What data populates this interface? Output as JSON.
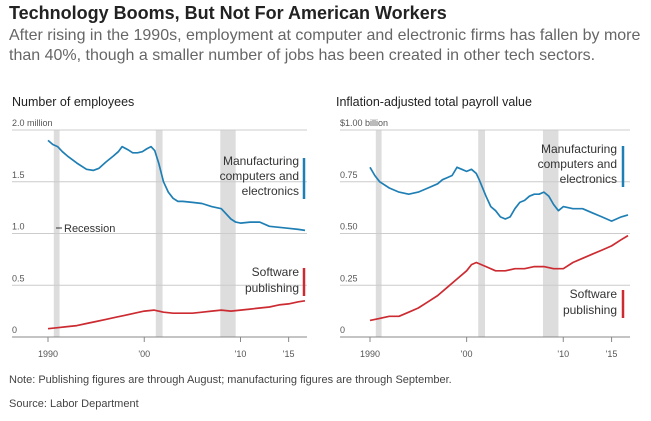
{
  "headline": "Technology Booms, But Not For American Workers",
  "dek": "After rising in the 1990s, employment at computer and electronic firms has fallen by more than 40%, though a smaller number of jobs has been created in other tech sectors.",
  "note": "Note: Publishing figures are through August; manufacturing figures are through September.",
  "source": "Source: Labor Department",
  "colors": {
    "manufacturing": "#1f7fb4",
    "software": "#cc2b31",
    "recession": "#dddddd",
    "grid": "#cccccc",
    "axis": "#888888"
  },
  "chart_data": [
    {
      "type": "line",
      "title": "Number of employees",
      "y_ticks": [
        {
          "value": 0,
          "label": "0"
        },
        {
          "value": 0.5,
          "label": "0.5"
        },
        {
          "value": 1.0,
          "label": "1.0"
        },
        {
          "value": 1.5,
          "label": "1.5"
        },
        {
          "value": 2.0,
          "label": "2.0 million"
        }
      ],
      "x_ticks": [
        {
          "value": 1990,
          "label": "1990"
        },
        {
          "value": 2000,
          "label": "'00"
        },
        {
          "value": 2010,
          "label": "'10"
        },
        {
          "value": 2015,
          "label": "'15"
        }
      ],
      "xlim": [
        1990,
        2016.7
      ],
      "ylim": [
        0,
        2.0
      ],
      "recessions": [
        [
          1990.6,
          1991.2
        ],
        [
          2001.2,
          2001.9
        ],
        [
          2007.9,
          2009.5
        ]
      ],
      "recession_label": "Recession",
      "series": [
        {
          "name": "Manufacturing computers and electronics",
          "label_lines": [
            "Manufacturing",
            "computers and",
            "electronics"
          ],
          "x": [
            1990,
            1990.5,
            1991,
            1991.5,
            1992,
            1993,
            1994,
            1994.7,
            1995.3,
            1996,
            1996.8,
            1997.3,
            1997.7,
            1998.3,
            1998.8,
            1999.3,
            1999.8,
            2000.3,
            2000.7,
            2001.1,
            2001.5,
            2002,
            2002.5,
            2003,
            2003.5,
            2004,
            2005,
            2006,
            2007,
            2008,
            2009,
            2009.5,
            2010,
            2011,
            2012,
            2013,
            2014,
            2015,
            2016,
            2016.7
          ],
          "y": [
            1.9,
            1.86,
            1.84,
            1.79,
            1.75,
            1.68,
            1.62,
            1.61,
            1.63,
            1.69,
            1.75,
            1.79,
            1.84,
            1.81,
            1.78,
            1.78,
            1.79,
            1.82,
            1.84,
            1.8,
            1.68,
            1.5,
            1.4,
            1.34,
            1.31,
            1.31,
            1.3,
            1.29,
            1.26,
            1.24,
            1.14,
            1.11,
            1.1,
            1.11,
            1.11,
            1.07,
            1.06,
            1.05,
            1.04,
            1.03
          ]
        },
        {
          "name": "Software publishing",
          "label_lines": [
            "Software",
            "publishing"
          ],
          "x": [
            1990,
            1991,
            1992,
            1993,
            1994,
            1995,
            1996,
            1997,
            1998,
            1999,
            2000,
            2001,
            2002,
            2003,
            2004,
            2005,
            2006,
            2007,
            2008,
            2009,
            2010,
            2011,
            2012,
            2013,
            2014,
            2015,
            2016,
            2016.7
          ],
          "y": [
            0.08,
            0.09,
            0.1,
            0.11,
            0.13,
            0.15,
            0.17,
            0.19,
            0.21,
            0.23,
            0.25,
            0.26,
            0.24,
            0.23,
            0.23,
            0.23,
            0.24,
            0.25,
            0.26,
            0.25,
            0.26,
            0.27,
            0.28,
            0.29,
            0.31,
            0.32,
            0.34,
            0.35
          ]
        }
      ]
    },
    {
      "type": "line",
      "title": "Inflation-adjusted total payroll value",
      "y_ticks": [
        {
          "value": 0,
          "label": "0"
        },
        {
          "value": 0.25,
          "label": "0.25"
        },
        {
          "value": 0.5,
          "label": "0.50"
        },
        {
          "value": 0.75,
          "label": "0.75"
        },
        {
          "value": 1.0,
          "label": "$1.00 billion"
        }
      ],
      "x_ticks": [
        {
          "value": 1990,
          "label": "1990"
        },
        {
          "value": 2000,
          "label": "'00"
        },
        {
          "value": 2010,
          "label": "'10"
        },
        {
          "value": 2015,
          "label": "'15"
        }
      ],
      "xlim": [
        1990,
        2016.7
      ],
      "ylim": [
        0,
        1.0
      ],
      "recessions": [
        [
          1990.6,
          1991.2
        ],
        [
          2001.2,
          2001.9
        ],
        [
          2007.9,
          2009.5
        ]
      ],
      "series": [
        {
          "name": "Manufacturing computers and electronics",
          "label_lines": [
            "Manufacturing",
            "computers and",
            "electronics"
          ],
          "x": [
            1990,
            1990.5,
            1991,
            1992,
            1993,
            1994,
            1995,
            1996,
            1997,
            1997.5,
            1998,
            1998.5,
            1999,
            1999.5,
            2000,
            2000.5,
            2001,
            2001.3,
            2002,
            2002.5,
            2003,
            2003.5,
            2004,
            2004.5,
            2005,
            2005.5,
            2006,
            2006.5,
            2007,
            2007.5,
            2008,
            2008.5,
            2009,
            2009.5,
            2010,
            2011,
            2012,
            2013,
            2014,
            2015,
            2016,
            2016.7
          ],
          "y": [
            0.82,
            0.78,
            0.75,
            0.72,
            0.7,
            0.69,
            0.7,
            0.72,
            0.74,
            0.76,
            0.77,
            0.78,
            0.82,
            0.81,
            0.8,
            0.81,
            0.79,
            0.76,
            0.68,
            0.63,
            0.61,
            0.58,
            0.57,
            0.58,
            0.62,
            0.65,
            0.66,
            0.68,
            0.69,
            0.69,
            0.7,
            0.68,
            0.64,
            0.61,
            0.63,
            0.62,
            0.62,
            0.6,
            0.58,
            0.56,
            0.58,
            0.59
          ]
        },
        {
          "name": "Software publishing",
          "label_lines": [
            "Software",
            "publishing"
          ],
          "x": [
            1990,
            1991,
            1992,
            1993,
            1994,
            1995,
            1996,
            1997,
            1998,
            1999,
            2000,
            2000.5,
            2001,
            2002,
            2003,
            2004,
            2005,
            2006,
            2007,
            2008,
            2009,
            2010,
            2011,
            2012,
            2013,
            2014,
            2015,
            2016,
            2016.7
          ],
          "y": [
            0.08,
            0.09,
            0.1,
            0.1,
            0.12,
            0.14,
            0.17,
            0.2,
            0.24,
            0.28,
            0.32,
            0.35,
            0.36,
            0.34,
            0.32,
            0.32,
            0.33,
            0.33,
            0.34,
            0.34,
            0.33,
            0.33,
            0.36,
            0.38,
            0.4,
            0.42,
            0.44,
            0.47,
            0.49
          ]
        }
      ]
    }
  ]
}
